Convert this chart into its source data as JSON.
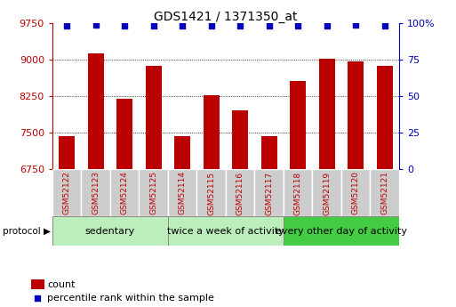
{
  "title": "GDS1421 / 1371350_at",
  "samples": [
    "GSM52122",
    "GSM52123",
    "GSM52124",
    "GSM52125",
    "GSM52114",
    "GSM52115",
    "GSM52116",
    "GSM52117",
    "GSM52118",
    "GSM52119",
    "GSM52120",
    "GSM52121"
  ],
  "counts": [
    7430,
    9130,
    8200,
    8870,
    7430,
    8260,
    7950,
    7430,
    8560,
    9020,
    8960,
    8870
  ],
  "percentiles": [
    98,
    99,
    98,
    98,
    98,
    98,
    98,
    98,
    98,
    98,
    99,
    98
  ],
  "groups": [
    {
      "label": "sedentary",
      "n": 4,
      "color": "#bbeebb"
    },
    {
      "label": "twice a week of activity",
      "n": 4,
      "color": "#bbeebb"
    },
    {
      "label": "every other day of activity",
      "n": 4,
      "color": "#44cc44"
    }
  ],
  "ylim_left": [
    6750,
    9750
  ],
  "ylim_right": [
    0,
    100
  ],
  "yticks_left": [
    6750,
    7500,
    8250,
    9000,
    9750
  ],
  "yticks_right": [
    0,
    25,
    50,
    75,
    100
  ],
  "bar_color": "#bb0000",
  "dot_color": "#0000bb",
  "label_count": "count",
  "label_percentile": "percentile rank within the sample",
  "sample_box_color": "#cccccc",
  "group_border_color": "#888888"
}
